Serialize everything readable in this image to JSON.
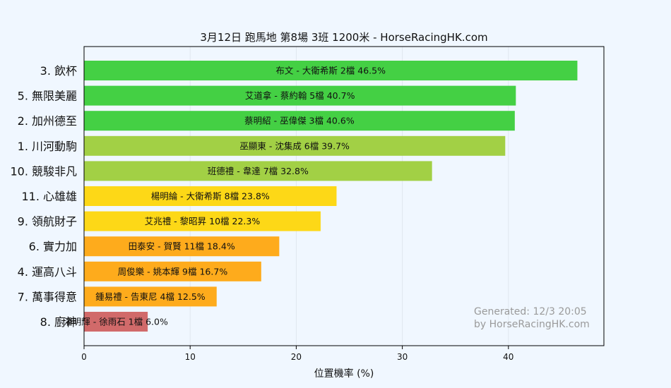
{
  "chart_data": {
    "type": "bar",
    "orientation": "horizontal",
    "title": "3月12日  跑馬地  第8場  3班  1200米 - HorseRacingHK.com",
    "xlabel": "位置機率 (%)",
    "ylabel": "",
    "xlim": [
      0,
      49
    ],
    "xticks": [
      0,
      10,
      20,
      30,
      40
    ],
    "grid": true,
    "categories": [
      "3. 飲杯",
      "5. 無限美麗",
      "2. 加州德至",
      "1. 川河動駒",
      "10. 競駿非凡",
      "11. 心雄雄",
      "9. 領航財子",
      "6. 實力加",
      "4. 運高八斗",
      "7. 萬事得意",
      "8. 廚神"
    ],
    "values": [
      46.5,
      40.7,
      40.6,
      39.7,
      32.8,
      23.8,
      22.3,
      18.4,
      16.7,
      12.5,
      6.0
    ],
    "bar_labels": [
      "布文 - 大衛希斯 2檔  46.5%",
      "艾道拿 - 蔡約翰 5檔  40.7%",
      "蔡明紹 - 巫偉傑 3檔  40.6%",
      "巫顯東 - 沈集成 6檔  39.7%",
      "班德禮 - 韋達 7檔  32.8%",
      "楊明綸 - 大衛希斯 8檔  23.8%",
      "艾兆禮 - 黎昭昇 10檔  22.3%",
      "田泰安 - 賀賢 11檔  18.4%",
      "周俊樂 - 姚本輝 9檔  16.7%",
      "鍾易禮 - 告東尼 4檔  12.5%",
      "潘明輝 - 徐雨石 1檔  6.0%"
    ],
    "colors": [
      "#44d044",
      "#44d044",
      "#44d044",
      "#a2d045",
      "#a2d045",
      "#fdd817",
      "#fdd817",
      "#feab1c",
      "#feab1c",
      "#feab1c",
      "#d16a6a"
    ],
    "annotation": [
      "Generated: 12/3 20:05",
      "by HorseRacingHK.com"
    ]
  },
  "colors": {
    "background": "#f0f7ff",
    "grid": "#dfe6ee",
    "axis": "#000000"
  }
}
